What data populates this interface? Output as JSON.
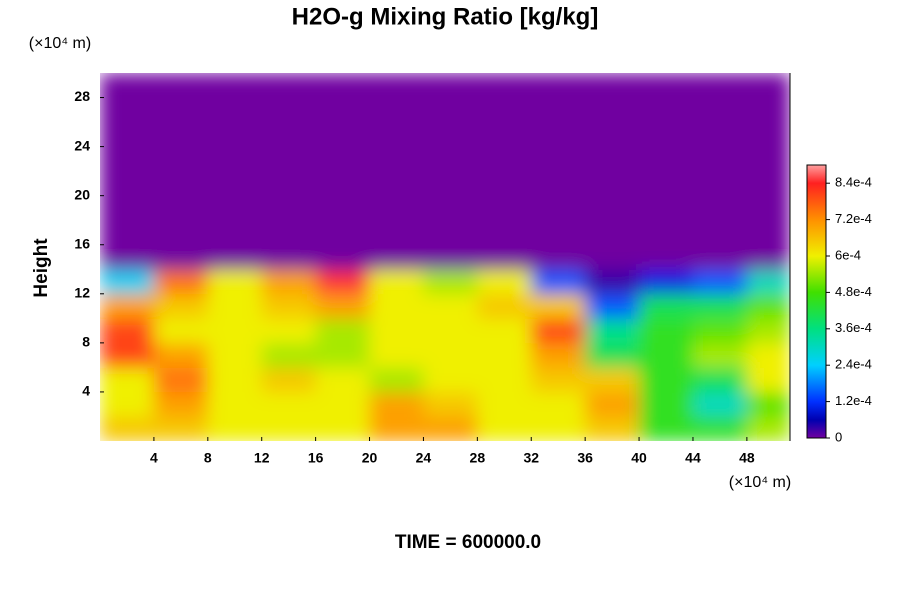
{
  "chart_data": {
    "type": "heatmap",
    "title": "H2O-g Mixing Ratio [kg/kg]",
    "y_label": "Height",
    "x_unit": "(×10⁴ m)",
    "y_unit": "(×10⁴ m)",
    "annotation": "TIME = 600000.0",
    "x_edges": [
      0,
      4,
      8,
      12,
      16,
      20,
      24,
      28,
      32,
      36,
      40,
      44,
      48,
      51.2
    ],
    "y_edges": [
      0,
      2,
      4,
      6,
      8,
      10,
      12,
      14,
      30
    ],
    "z": [
      [
        0.00065,
        0.00065,
        0.0006,
        0.0006,
        0.0006,
        0.0007,
        0.0007,
        0.0006,
        0.0006,
        0.00065,
        0.00045,
        0.00045,
        0.00055
      ],
      [
        0.0006,
        0.0007,
        0.0006,
        0.0006,
        0.0006,
        0.0007,
        0.00065,
        0.0006,
        0.0006,
        0.0007,
        0.00045,
        0.0003,
        0.0005
      ],
      [
        0.0006,
        0.00075,
        0.0006,
        0.00065,
        0.0006,
        0.00055,
        0.0006,
        0.0006,
        0.00065,
        0.00065,
        0.00045,
        0.0004,
        0.0006
      ],
      [
        0.0008,
        0.0007,
        0.0006,
        0.00055,
        0.00055,
        0.0006,
        0.0006,
        0.0006,
        0.0007,
        0.0004,
        0.00045,
        0.00055,
        0.0006
      ],
      [
        0.0008,
        0.0006,
        0.0006,
        0.0006,
        0.00055,
        0.0006,
        0.0006,
        0.0006,
        0.0008,
        0.00035,
        0.00045,
        0.0005,
        0.00055
      ],
      [
        0.0007,
        0.00065,
        0.0006,
        0.00065,
        0.0007,
        0.0006,
        0.0006,
        0.00065,
        0.00065,
        0.00015,
        0.0004,
        0.0004,
        0.0005
      ],
      [
        0.00025,
        0.00075,
        0.0006,
        0.0007,
        0.00085,
        0.0006,
        0.00055,
        0.0006,
        0.00015,
        3e-05,
        0.0001,
        0.00015,
        0.0003
      ],
      [
        0,
        0,
        0,
        0,
        0,
        0,
        0,
        0,
        0,
        0,
        0,
        0,
        0
      ]
    ],
    "xlim": [
      0,
      51.2
    ],
    "ylim": [
      0,
      30
    ],
    "xticks": [
      4,
      8,
      12,
      16,
      20,
      24,
      28,
      32,
      36,
      40,
      44,
      48
    ],
    "yticks": [
      4,
      8,
      12,
      16,
      20,
      24,
      28
    ],
    "clim": [
      0,
      0.0009
    ],
    "cticks": [
      0,
      {
        "value": 0.00012,
        "label": "1.2e-4"
      },
      {
        "value": 0.00024,
        "label": "2.4e-4"
      },
      {
        "value": 0.00036,
        "label": "3.6e-4"
      },
      {
        "value": 0.00048,
        "label": "4.8e-4"
      },
      {
        "value": 0.0006,
        "label": "6e-4"
      },
      {
        "value": 0.00072,
        "label": "7.2e-4"
      },
      {
        "value": 0.00084,
        "label": "8.4e-4"
      }
    ],
    "colorscale": [
      [
        0,
        "#7000a0"
      ],
      [
        6e-05,
        "#0000b0"
      ],
      [
        0.00012,
        "#0030ff"
      ],
      [
        0.00024,
        "#00d0ff"
      ],
      [
        0.00036,
        "#00e080"
      ],
      [
        0.00048,
        "#40e000"
      ],
      [
        0.0006,
        "#f0f000"
      ],
      [
        0.00072,
        "#ff9000"
      ],
      [
        0.00084,
        "#ff2020"
      ],
      [
        0.0009,
        "#ffa0a0"
      ]
    ]
  }
}
